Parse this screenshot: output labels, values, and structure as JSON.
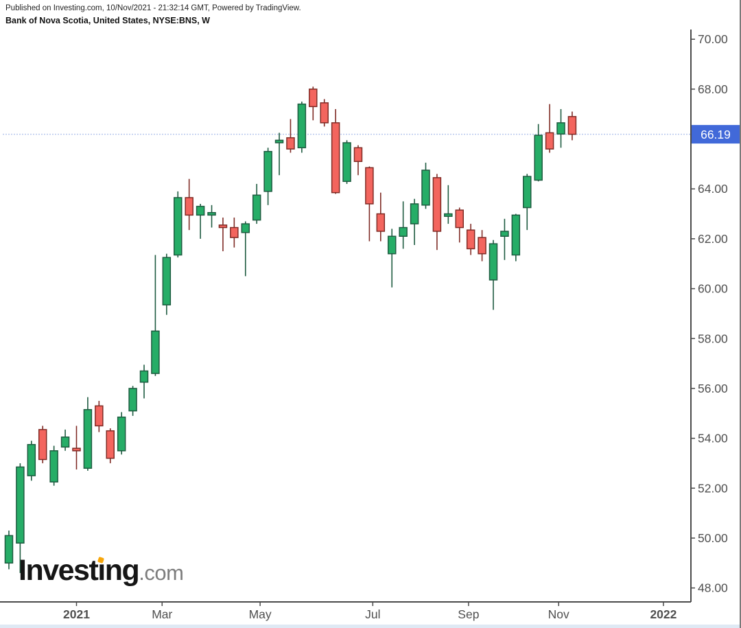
{
  "header": {
    "published_line": "Published on Investing.com, 10/Nov/2021 - 21:32:14 GMT, Powered by TradingView.",
    "instrument_line": "Bank of Nova Scotia, United States, NYSE:BNS, W"
  },
  "logo": {
    "part_before_i": "Invest",
    "dotless_i": "ı",
    "part_after_i": "ng",
    "suffix": ".com"
  },
  "colors": {
    "up_fill": "#26ad67",
    "up_stroke": "#1e5b40",
    "down_fill": "#f3655e",
    "down_stroke": "#7f2b25",
    "axis_line": "#4a4a4a",
    "axis_text": "#4f4f4f",
    "price_line": "#b9c9ee",
    "badge_bg": "#4169d9",
    "badge_text": "#ffffff",
    "logo_dot": "#f7a60a",
    "footer_strip": "#dfe9f4"
  },
  "chart_data": {
    "type": "candlestick",
    "title": "Bank of Nova Scotia, United States, NYSE:BNS, W",
    "symbol": "NYSE:BNS",
    "company": "Bank of Nova Scotia",
    "region": "United States",
    "timeframe": "W",
    "last_price": "66.19",
    "last_price_value": 66.19,
    "grid": false,
    "legend_position": "none",
    "y_axis": {
      "side": "right",
      "ylim": [
        47.44,
        70.39
      ],
      "tick_values": [
        70,
        68,
        66,
        64,
        62,
        60,
        58,
        56,
        54,
        52,
        50,
        48
      ],
      "tick_labels": [
        "70.00",
        "68.00",
        "66.00",
        "64.00",
        "62.00",
        "60.00",
        "58.00",
        "56.00",
        "54.00",
        "52.00",
        "50.00",
        "48.00"
      ]
    },
    "x_axis": {
      "xlim_index": [
        -0.79,
        60.54
      ],
      "ticks": [
        {
          "label": "2021",
          "index": 6.0,
          "bold": true
        },
        {
          "label": "Mar",
          "index": 13.6,
          "bold": false
        },
        {
          "label": "May",
          "index": 22.3,
          "bold": false
        },
        {
          "label": "Jul",
          "index": 32.3,
          "bold": false
        },
        {
          "label": "Sep",
          "index": 40.8,
          "bold": false
        },
        {
          "label": "Nov",
          "index": 48.8,
          "bold": false
        },
        {
          "label": "2022",
          "index": 58.1,
          "bold": true
        }
      ]
    },
    "candles_format": [
      "open",
      "high",
      "low",
      "close"
    ],
    "candles": [
      [
        49.0,
        50.3,
        48.75,
        50.1
      ],
      [
        49.8,
        53.0,
        48.6,
        52.85
      ],
      [
        52.5,
        53.9,
        52.3,
        53.75
      ],
      [
        54.35,
        54.5,
        53.0,
        53.15
      ],
      [
        52.25,
        53.7,
        52.1,
        53.5
      ],
      [
        53.65,
        54.35,
        53.5,
        54.05
      ],
      [
        53.6,
        54.5,
        52.75,
        53.5
      ],
      [
        52.8,
        55.65,
        52.7,
        55.15
      ],
      [
        55.3,
        55.5,
        54.25,
        54.5
      ],
      [
        54.3,
        54.4,
        53.0,
        53.2
      ],
      [
        53.5,
        55.05,
        53.35,
        54.85
      ],
      [
        55.1,
        56.1,
        54.9,
        56.0
      ],
      [
        56.25,
        56.95,
        55.6,
        56.7
      ],
      [
        56.6,
        61.35,
        56.5,
        58.3
      ],
      [
        59.35,
        61.4,
        58.95,
        61.25
      ],
      [
        61.35,
        63.9,
        61.25,
        63.65
      ],
      [
        63.65,
        64.4,
        62.35,
        62.95
      ],
      [
        62.95,
        63.4,
        62.0,
        63.3
      ],
      [
        62.95,
        63.35,
        62.45,
        63.05
      ],
      [
        62.55,
        62.85,
        61.5,
        62.45
      ],
      [
        62.45,
        62.85,
        61.65,
        62.05
      ],
      [
        62.25,
        62.7,
        60.5,
        62.6
      ],
      [
        62.75,
        64.2,
        62.6,
        63.75
      ],
      [
        63.9,
        65.65,
        63.35,
        65.5
      ],
      [
        65.85,
        66.25,
        64.55,
        65.95
      ],
      [
        66.05,
        66.8,
        65.45,
        65.6
      ],
      [
        65.65,
        67.5,
        65.45,
        67.4
      ],
      [
        68.0,
        68.1,
        66.75,
        67.3
      ],
      [
        67.45,
        67.6,
        66.5,
        66.65
      ],
      [
        66.65,
        67.2,
        63.8,
        63.85
      ],
      [
        64.3,
        65.95,
        64.2,
        65.85
      ],
      [
        65.65,
        65.75,
        64.55,
        65.1
      ],
      [
        64.85,
        64.9,
        61.9,
        63.4
      ],
      [
        63.0,
        63.85,
        61.9,
        62.3
      ],
      [
        61.4,
        62.4,
        60.05,
        62.1
      ],
      [
        62.1,
        63.5,
        61.6,
        62.45
      ],
      [
        62.6,
        63.6,
        61.75,
        63.4
      ],
      [
        63.35,
        65.05,
        63.2,
        64.75
      ],
      [
        64.45,
        64.6,
        61.55,
        62.3
      ],
      [
        62.9,
        64.15,
        62.6,
        63.0
      ],
      [
        63.15,
        63.25,
        61.85,
        62.45
      ],
      [
        62.35,
        62.6,
        61.35,
        61.6
      ],
      [
        62.05,
        62.35,
        61.1,
        61.4
      ],
      [
        60.35,
        61.95,
        59.15,
        61.8
      ],
      [
        62.1,
        62.8,
        61.15,
        62.3
      ],
      [
        61.35,
        63.0,
        61.1,
        62.95
      ],
      [
        63.25,
        64.6,
        62.35,
        64.5
      ],
      [
        64.35,
        66.6,
        64.3,
        66.15
      ],
      [
        66.25,
        67.4,
        65.45,
        65.6
      ],
      [
        66.2,
        67.2,
        65.65,
        66.65
      ],
      [
        66.9,
        67.1,
        65.95,
        66.19
      ]
    ]
  }
}
